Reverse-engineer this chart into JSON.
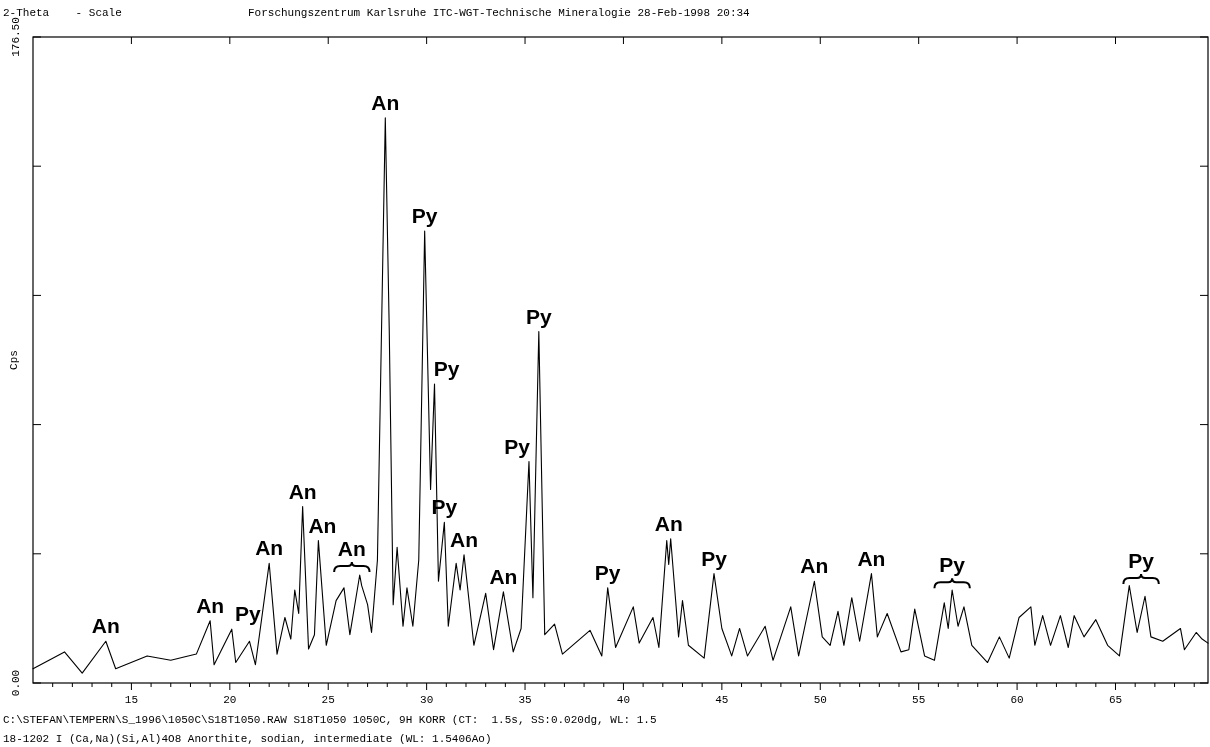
{
  "chart_data": {
    "type": "line",
    "title": "Forschungszentrum Karlsruhe ITC-WGT-Technische Mineralogie 28-Feb-1998 20:34",
    "xlabel": "2-Theta    - Scale",
    "ylabel": "Cps",
    "xlim": [
      10,
      69.7
    ],
    "ylim": [
      0,
      176.5
    ],
    "xticks": [
      {
        "value": 11,
        "label": null
      },
      {
        "value": 12,
        "label": null
      },
      {
        "value": 13,
        "label": null
      },
      {
        "value": 14,
        "label": null
      },
      15,
      {
        "value": 16,
        "label": null
      },
      {
        "value": 17,
        "label": null
      },
      {
        "value": 18,
        "label": null
      },
      {
        "value": 19,
        "label": null
      },
      20,
      {
        "value": 21,
        "label": null
      },
      {
        "value": 22,
        "label": null
      },
      {
        "value": 23,
        "label": null
      },
      {
        "value": 24,
        "label": null
      },
      25,
      {
        "value": 26,
        "label": null
      },
      {
        "value": 27,
        "label": null
      },
      {
        "value": 28,
        "label": null
      },
      {
        "value": 29,
        "label": null
      },
      30,
      {
        "value": 31,
        "label": null
      },
      {
        "value": 32,
        "label": null
      },
      {
        "value": 33,
        "label": null
      },
      {
        "value": 34,
        "label": null
      },
      35,
      {
        "value": 36,
        "label": null
      },
      {
        "value": 37,
        "label": null
      },
      {
        "value": 38,
        "label": null
      },
      {
        "value": 39,
        "label": null
      },
      40,
      {
        "value": 41,
        "label": null
      },
      {
        "value": 42,
        "label": null
      },
      {
        "value": 43,
        "label": null
      },
      {
        "value": 44,
        "label": null
      },
      45,
      {
        "value": 46,
        "label": null
      },
      {
        "value": 47,
        "label": null
      },
      {
        "value": 48,
        "label": null
      },
      {
        "value": 49,
        "label": null
      },
      50,
      {
        "value": 51,
        "label": null
      },
      {
        "value": 52,
        "label": null
      },
      {
        "value": 53,
        "label": null
      },
      {
        "value": 54,
        "label": null
      },
      55,
      {
        "value": 56,
        "label": null
      },
      {
        "value": 57,
        "label": null
      },
      {
        "value": 58,
        "label": null
      },
      {
        "value": 59,
        "label": null
      },
      60,
      {
        "value": 61,
        "label": null
      },
      {
        "value": 62,
        "label": null
      },
      {
        "value": 63,
        "label": null
      },
      {
        "value": 64,
        "label": null
      },
      65,
      {
        "value": 66,
        "label": null
      },
      {
        "value": 67,
        "label": null
      },
      {
        "value": 68,
        "label": null
      },
      {
        "value": 69,
        "label": null
      }
    ],
    "yticks": [
      {
        "value": 0,
        "label": "0.00"
      },
      {
        "value": 35.3,
        "label": null
      },
      {
        "value": 70.6,
        "label": null
      },
      {
        "value": 105.9,
        "label": null
      },
      {
        "value": 141.2,
        "label": null
      },
      {
        "value": 176.5,
        "label": "176.50"
      }
    ],
    "series": [
      {
        "color": "#000000",
        "x": [
          10.0,
          11.6,
          12.5,
          13.7,
          14.2,
          15.8,
          17.0,
          18.3,
          19.0,
          19.2,
          20.1,
          20.3,
          21.0,
          21.3,
          22.0,
          22.4,
          22.8,
          23.1,
          23.3,
          23.5,
          23.7,
          24.0,
          24.3,
          24.5,
          24.9,
          25.4,
          25.8,
          26.1,
          26.6,
          26.7,
          27.0,
          27.2,
          27.5,
          27.9,
          28.1,
          28.3,
          28.5,
          28.8,
          29.0,
          29.3,
          29.6,
          29.9,
          30.2,
          30.4,
          30.6,
          30.9,
          31.1,
          31.5,
          31.7,
          31.9,
          32.4,
          33.0,
          33.4,
          33.9,
          34.4,
          34.8,
          35.2,
          35.4,
          35.7,
          36.0,
          36.5,
          36.9,
          38.3,
          38.9,
          39.2,
          39.6,
          40.5,
          40.8,
          41.5,
          41.8,
          42.2,
          42.3,
          42.4,
          42.8,
          43.0,
          43.3,
          44.1,
          44.6,
          45.0,
          45.5,
          45.9,
          46.3,
          47.2,
          47.6,
          48.5,
          48.9,
          49.7,
          50.1,
          50.5,
          50.9,
          51.2,
          51.6,
          52.0,
          52.6,
          52.9,
          53.4,
          54.1,
          54.5,
          54.8,
          55.3,
          55.8,
          56.3,
          56.5,
          56.7,
          57.0,
          57.3,
          57.7,
          58.5,
          59.1,
          59.6,
          60.1,
          60.7,
          60.9,
          61.3,
          61.7,
          62.2,
          62.6,
          62.9,
          63.4,
          64.0,
          64.6,
          65.2,
          65.7,
          66.1,
          66.5,
          66.8,
          67.4,
          68.3,
          68.5,
          69.1,
          69.4,
          69.7
        ],
        "values": [
          3.9,
          8.5,
          2.7,
          11.4,
          3.9,
          7.4,
          6.2,
          7.9,
          17.0,
          5.0,
          14.7,
          5.6,
          11.4,
          5.0,
          32.7,
          7.9,
          17.9,
          12.0,
          25.4,
          19.0,
          48.2,
          9.3,
          13.2,
          38.9,
          10.3,
          22.5,
          26.0,
          13.2,
          29.5,
          26.6,
          21.4,
          13.8,
          33.6,
          154.4,
          96.6,
          21.4,
          37.1,
          15.5,
          26.0,
          15.5,
          33.6,
          123.5,
          52.9,
          81.7,
          27.8,
          43.9,
          15.5,
          32.7,
          25.4,
          35.0,
          10.3,
          24.5,
          9.1,
          24.9,
          8.5,
          14.9,
          60.5,
          23.3,
          96.0,
          13.2,
          16.1,
          7.9,
          14.4,
          7.4,
          26.0,
          9.7,
          20.8,
          10.9,
          17.9,
          9.7,
          38.9,
          32.4,
          39.4,
          12.6,
          22.5,
          10.3,
          6.8,
          29.9,
          14.9,
          7.4,
          14.9,
          7.4,
          15.5,
          6.2,
          20.8,
          7.4,
          27.8,
          12.6,
          10.3,
          19.6,
          10.3,
          23.3,
          11.4,
          29.9,
          12.6,
          19.0,
          8.5,
          9.1,
          20.2,
          7.4,
          6.2,
          21.9,
          14.9,
          25.4,
          15.5,
          20.8,
          10.3,
          5.6,
          12.6,
          6.8,
          17.9,
          20.8,
          10.3,
          18.4,
          10.3,
          18.4,
          9.7,
          18.4,
          12.6,
          17.3,
          10.3,
          7.4,
          26.6,
          13.8,
          23.7,
          12.6,
          11.4,
          14.9,
          9.1,
          13.8,
          12.0,
          10.9
        ]
      }
    ],
    "annotations": [
      {
        "text": "An",
        "x": 13.7,
        "y": 11.4
      },
      {
        "text": "An",
        "x": 19.0,
        "y": 17.0
      },
      {
        "text": "Py",
        "x": 20.1,
        "y": 14.7
      },
      {
        "text": "An",
        "x": 22.0,
        "y": 32.7
      },
      {
        "text": "An",
        "x": 23.7,
        "y": 48.2
      },
      {
        "text": "An",
        "x": 24.5,
        "y": 38.9
      },
      {
        "text": "An",
        "x": 26.6,
        "y": 29.5
      },
      {
        "text": "An",
        "x": 27.9,
        "y": 154.4
      },
      {
        "text": "Py",
        "x": 29.9,
        "y": 123.5
      },
      {
        "text": "Py",
        "x": 30.4,
        "y": 81.7
      },
      {
        "text": "Py",
        "x": 30.9,
        "y": 43.9
      },
      {
        "text": "An",
        "x": 31.9,
        "y": 35.0
      },
      {
        "text": "An",
        "x": 33.9,
        "y": 24.9
      },
      {
        "text": "Py",
        "x": 35.2,
        "y": 60.5
      },
      {
        "text": "Py",
        "x": 35.7,
        "y": 96.0
      },
      {
        "text": "Py",
        "x": 39.2,
        "y": 26.0
      },
      {
        "text": "An",
        "x": 42.3,
        "y": 39.4
      },
      {
        "text": "Py",
        "x": 44.6,
        "y": 29.9
      },
      {
        "text": "An",
        "x": 49.7,
        "y": 27.8
      },
      {
        "text": "An",
        "x": 52.6,
        "y": 29.9
      },
      {
        "text": "Py",
        "x": 56.7,
        "y": 25.4
      },
      {
        "text": "Py",
        "x": 65.7,
        "y": 26.6
      },
      "C:\\STEFAN\\TEMPERN\\S_1996\\1050C\\S18T1050.RAW S18T1050 1050C, 9H KORR (CT:  1.5s, SS:0.020dg, WL: 1.5",
      "18-1202 I (Ca,Na)(Si,Al)4O8 Anorthite, sodian, intermediate (WL: 1.5406Ao)"
    ]
  }
}
